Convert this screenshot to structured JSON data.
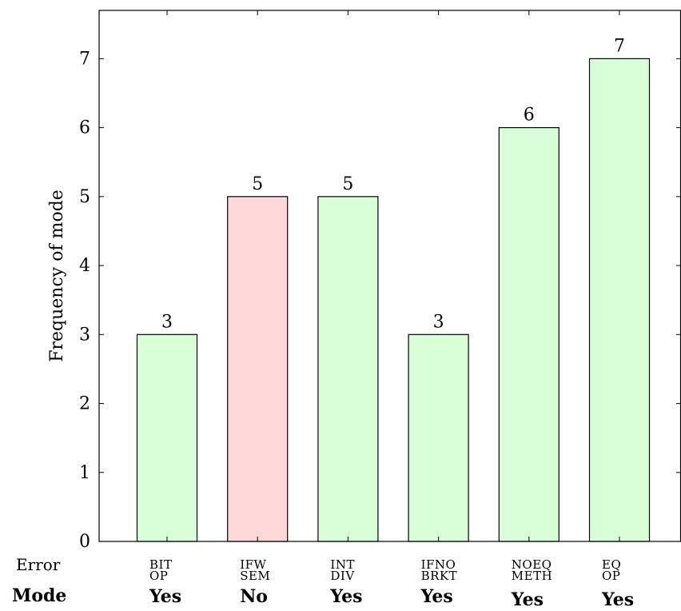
{
  "chart_data": {
    "type": "bar",
    "ylabel": "Frequency of mode",
    "ylim": [
      0,
      7.7
    ],
    "yticks": [
      0,
      1,
      2,
      3,
      4,
      5,
      6,
      7
    ],
    "categories": [
      [
        "BIT",
        "OP"
      ],
      [
        "IFW",
        "SEM"
      ],
      [
        "INT",
        "DIV"
      ],
      [
        "IFNO",
        "BRKT"
      ],
      [
        "NOEQ",
        "METH"
      ],
      [
        "EQ",
        "OP"
      ]
    ],
    "values": [
      3,
      5,
      5,
      3,
      6,
      7
    ],
    "mode": [
      "Yes",
      "No",
      "Yes",
      "Yes",
      "Yes",
      "Yes"
    ],
    "row_labels": {
      "error": "Error",
      "mode": "Mode"
    },
    "colors": {
      "yes_fill": "#d9ffd9",
      "no_fill": "#ffd9d9",
      "stroke": "#000000"
    },
    "grid": false,
    "legend": "none"
  }
}
